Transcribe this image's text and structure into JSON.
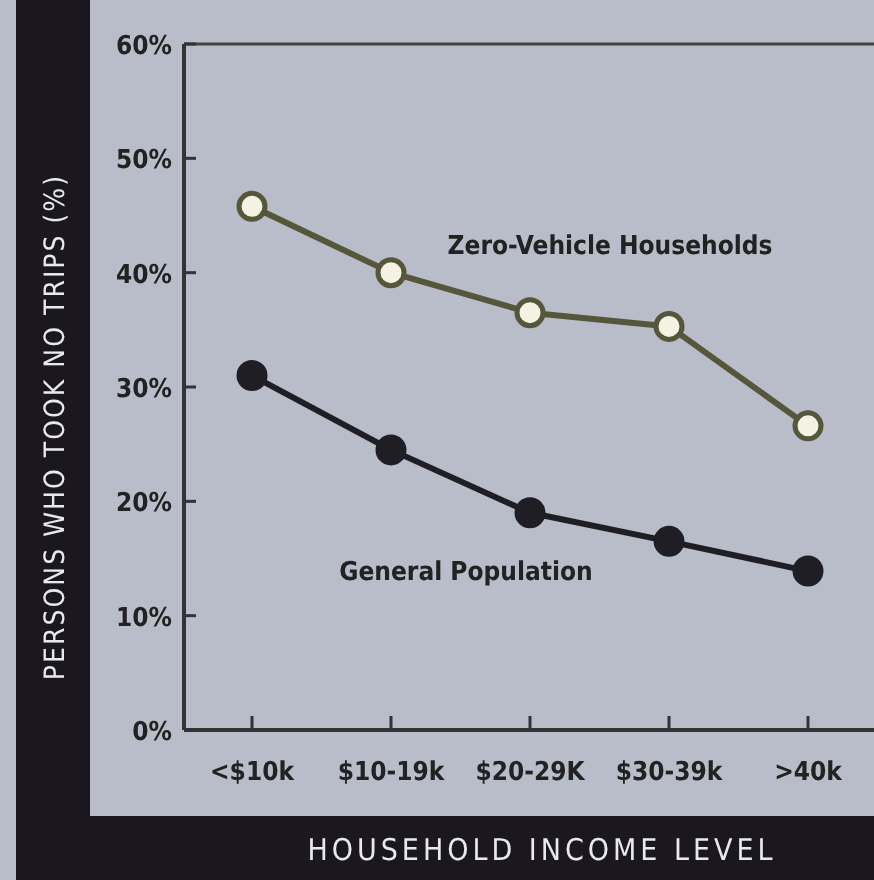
{
  "chart_data": {
    "type": "line",
    "xlabel": "HOUSEHOLD INCOME LEVEL",
    "ylabel": "PERSONS WHO TOOK NO TRIPS (%)",
    "categories": [
      "<$10k",
      "$10-19k",
      "$20-29K",
      "$30-39k",
      ">40k"
    ],
    "series": [
      {
        "name": "Zero-Vehicle Households",
        "color": "#56563a",
        "values": [
          45.8,
          40,
          36.5,
          35.3,
          26.6
        ]
      },
      {
        "name": "General Population",
        "color": "#1e1e24",
        "values": [
          31,
          24.5,
          19,
          16.5,
          13.9
        ]
      }
    ],
    "ylim": [
      0,
      60
    ],
    "yticks": [
      {
        "value": 0,
        "label": "0%"
      },
      {
        "value": 10,
        "label": "10%"
      },
      {
        "value": 20,
        "label": "20%"
      },
      {
        "value": 30,
        "label": "30%"
      },
      {
        "value": 40,
        "label": "40%"
      },
      {
        "value": 50,
        "label": "50%"
      },
      {
        "value": 60,
        "label": "60%"
      }
    ],
    "marker": "circle",
    "line_style": "solid"
  }
}
